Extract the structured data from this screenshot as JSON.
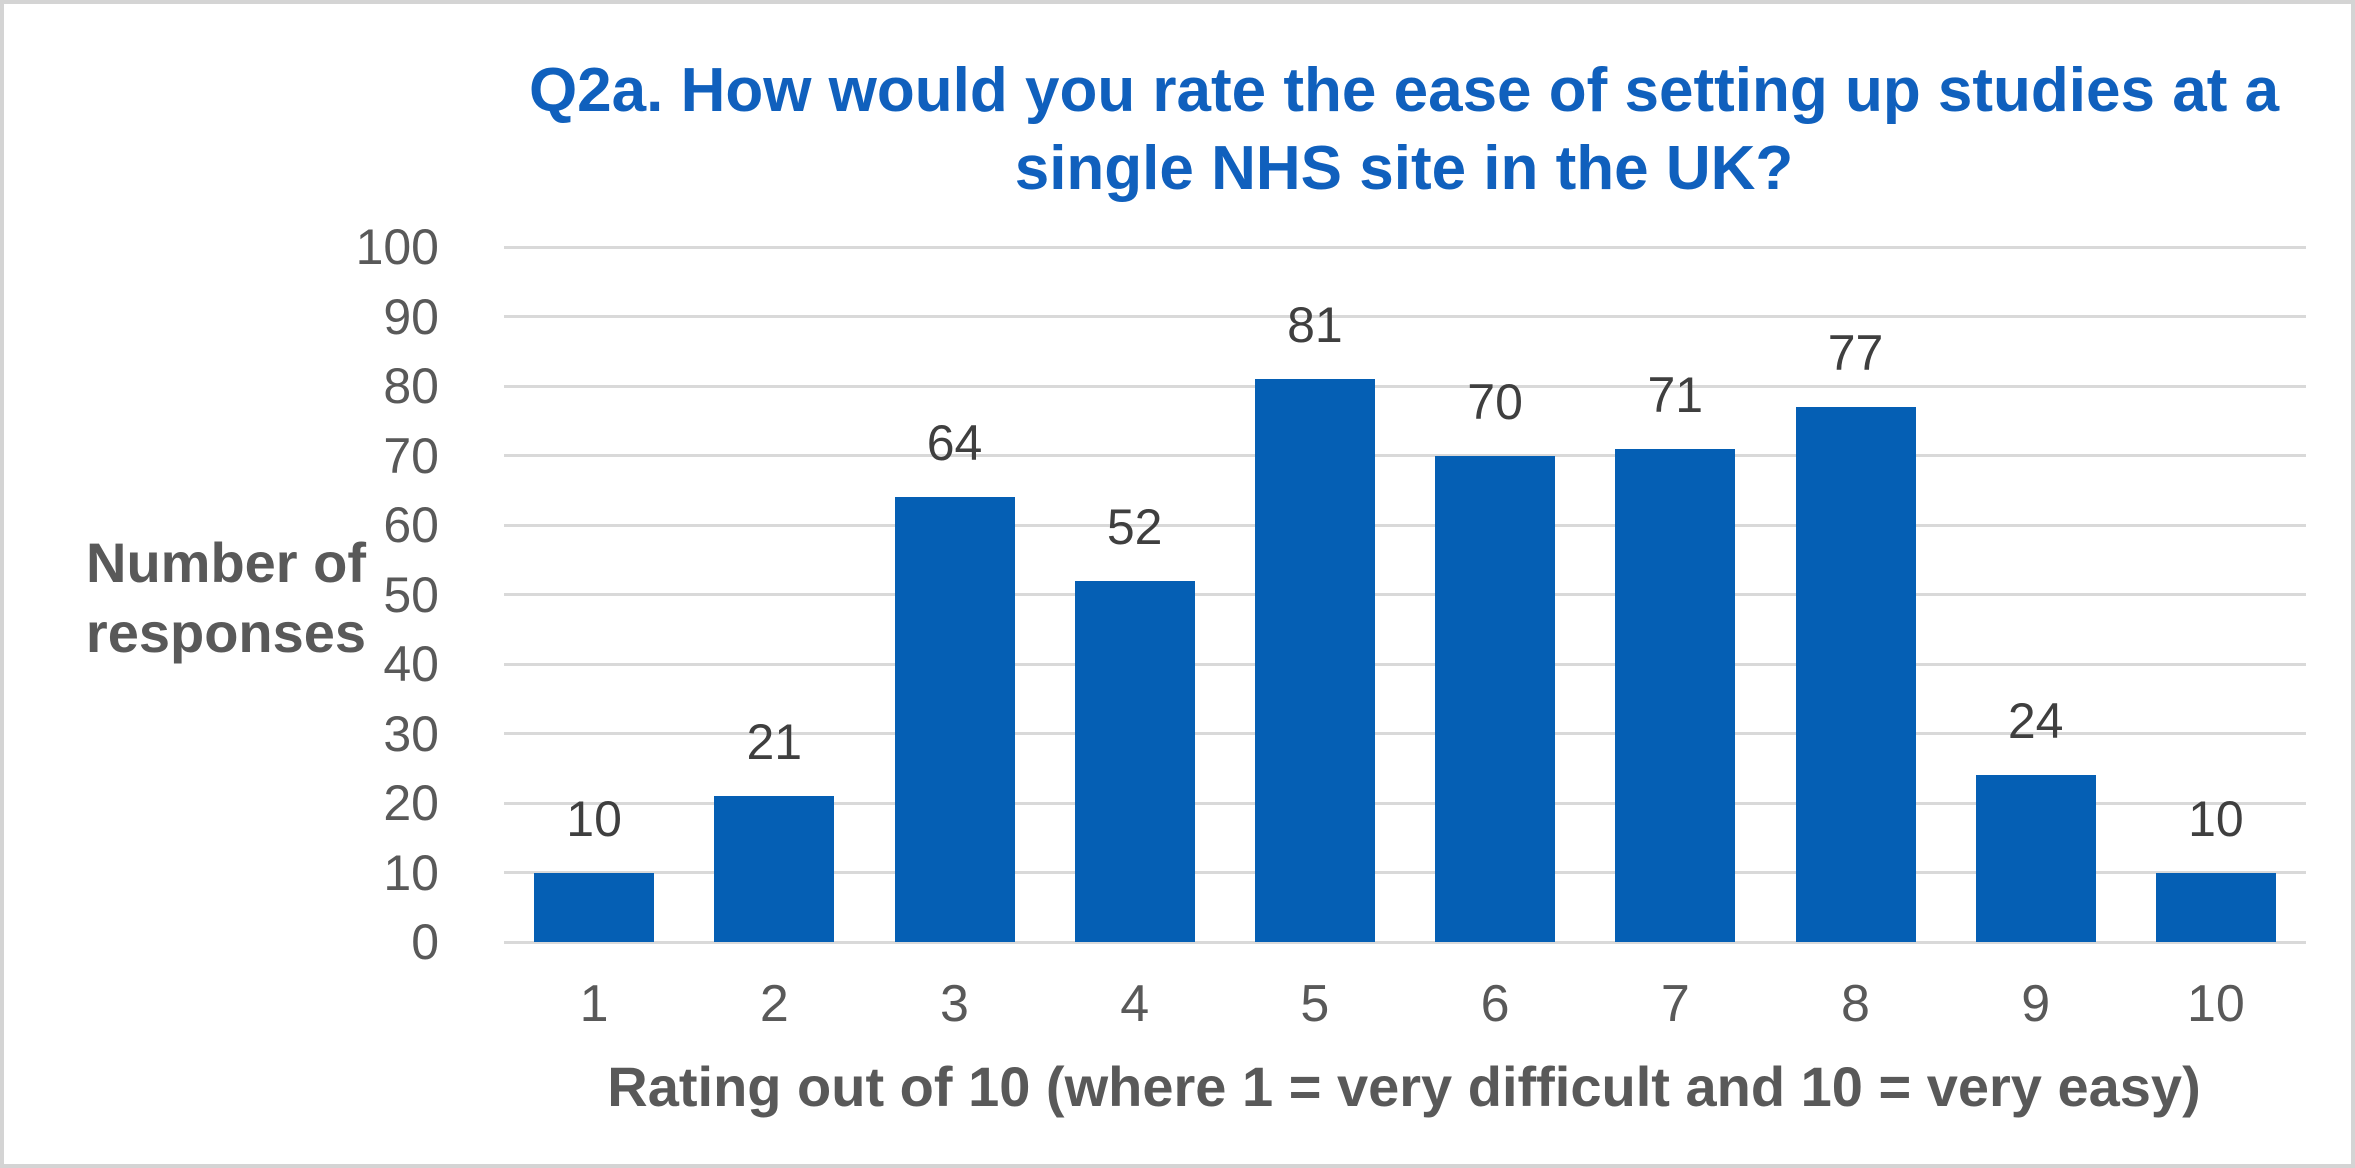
{
  "frame": {
    "background": "#FFFFFF",
    "border_color": "#D4D4D4"
  },
  "chart_data": {
    "type": "bar",
    "title": "Q2a. How would you rate the ease of setting up studies at a single NHS site in the UK?",
    "title_lines": [
      "Q2a. How would you rate the ease of setting up studies at a",
      "single NHS site in the UK?"
    ],
    "categories": [
      "1",
      "2",
      "3",
      "4",
      "5",
      "6",
      "7",
      "8",
      "9",
      "10"
    ],
    "values": [
      10,
      21,
      64,
      52,
      81,
      70,
      71,
      77,
      24,
      10
    ],
    "xlabel": "Rating out of 10 (where 1 = very difficult and 10 = very easy)",
    "ylabel": "Number of responses",
    "ylim": [
      0,
      100
    ],
    "yticks": [
      0,
      10,
      20,
      30,
      40,
      50,
      60,
      70,
      80,
      90,
      100
    ],
    "grid": "horizontal-only",
    "legend": "none",
    "data_labels": true,
    "colors": {
      "bar": "#055FB4",
      "title": "#1060BD",
      "axis_text": "#595959",
      "data_label": "#3F3F3F",
      "gridline": "#D9D9D9"
    }
  }
}
